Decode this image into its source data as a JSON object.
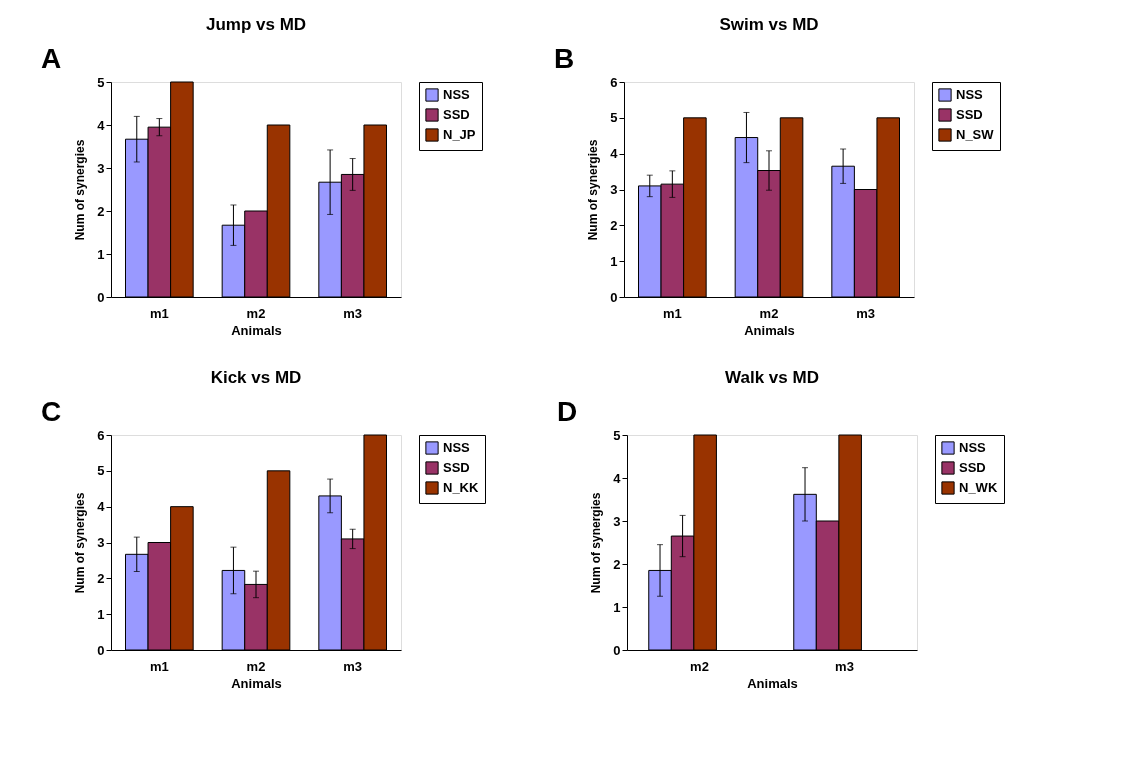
{
  "chart_data": [
    {
      "type": "bar",
      "title": "Jump vs MD",
      "xlabel": "Animals",
      "ylabel": "Num of synergies",
      "annotations": [
        "A"
      ],
      "categories": [
        "m1",
        "m2",
        "m3"
      ],
      "ylim": [
        0,
        5
      ],
      "yticks": [
        0,
        1,
        2,
        3,
        4,
        5
      ],
      "grid": false,
      "legend": "right",
      "series": [
        {
          "name": "NSS",
          "color": "#9999ff",
          "values": [
            3.67,
            1.67,
            2.67
          ],
          "errors": [
            0.53,
            0.47,
            0.75
          ]
        },
        {
          "name": "SSD",
          "color": "#993366",
          "values": [
            3.95,
            2.0,
            2.85
          ],
          "errors": [
            0.2,
            null,
            0.37
          ]
        },
        {
          "name": "N_JP",
          "color": "#993300",
          "values": [
            5,
            4,
            4
          ]
        }
      ]
    },
    {
      "type": "bar",
      "title": "Swim vs MD",
      "xlabel": "Animals",
      "ylabel": "Num of synergies",
      "annotations": [
        "B"
      ],
      "categories": [
        "m1",
        "m2",
        "m3"
      ],
      "ylim": [
        0,
        6
      ],
      "yticks": [
        0,
        1,
        2,
        3,
        4,
        5,
        6
      ],
      "grid": false,
      "legend": "right",
      "series": [
        {
          "name": "NSS",
          "color": "#9999ff",
          "values": [
            3.1,
            4.45,
            3.65
          ],
          "errors": [
            0.3,
            0.7,
            0.48
          ]
        },
        {
          "name": "SSD",
          "color": "#993366",
          "values": [
            3.15,
            3.53,
            3.0
          ],
          "errors": [
            0.37,
            0.55,
            null
          ]
        },
        {
          "name": "N_SW",
          "color": "#993300",
          "values": [
            5,
            5,
            5
          ]
        }
      ]
    },
    {
      "type": "bar",
      "title": "Kick vs MD",
      "xlabel": "Animals",
      "ylabel": "Num of synergies",
      "annotations": [
        "C"
      ],
      "categories": [
        "m1",
        "m2",
        "m3"
      ],
      "ylim": [
        0,
        6
      ],
      "yticks": [
        0,
        1,
        2,
        3,
        4,
        5,
        6
      ],
      "grid": false,
      "legend": "right",
      "series": [
        {
          "name": "NSS",
          "color": "#9999ff",
          "values": [
            2.67,
            2.22,
            4.3
          ],
          "errors": [
            0.48,
            0.65,
            0.47
          ]
        },
        {
          "name": "SSD",
          "color": "#993366",
          "values": [
            3.0,
            1.83,
            3.1
          ],
          "errors": [
            null,
            0.37,
            0.27
          ]
        },
        {
          "name": "N_KK",
          "color": "#993300",
          "values": [
            4,
            5,
            6
          ]
        }
      ]
    },
    {
      "type": "bar",
      "title": "Walk vs MD",
      "xlabel": "Animals",
      "ylabel": "Num of synergies",
      "annotations": [
        "D"
      ],
      "categories": [
        "m2",
        "m3"
      ],
      "ylim": [
        0,
        5
      ],
      "yticks": [
        0,
        1,
        2,
        3,
        4,
        5
      ],
      "grid": false,
      "legend": "right",
      "series": [
        {
          "name": "NSS",
          "color": "#9999ff",
          "values": [
            1.85,
            3.62
          ],
          "errors": [
            0.6,
            0.62
          ]
        },
        {
          "name": "SSD",
          "color": "#993366",
          "values": [
            2.65,
            3.0
          ],
          "errors": [
            0.48,
            null
          ]
        },
        {
          "name": "N_WK",
          "color": "#993300",
          "values": [
            5,
            5
          ]
        }
      ]
    }
  ]
}
